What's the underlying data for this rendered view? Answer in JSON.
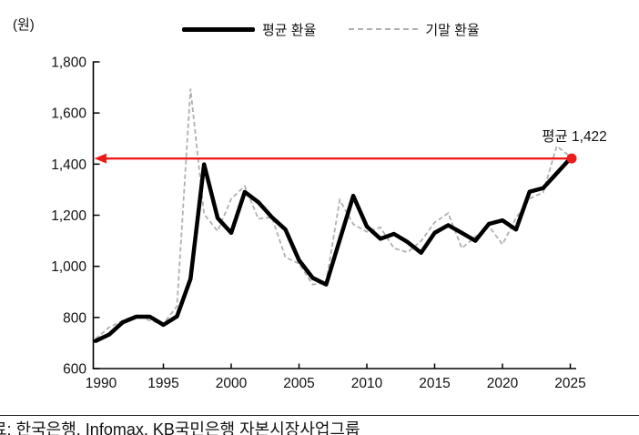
{
  "unit_label": "(원)",
  "legend": {
    "series1": "평균 환율",
    "series2": "기말 환율"
  },
  "annotation": "평균 1,422",
  "footer": {
    "source_text": "료: 한국은행, Infomax, KB국민은행 자본시장사업그룹"
  },
  "colors": {
    "average_line": "#000000",
    "end_of_period_line": "#b0b0b0",
    "highlight_red": "#ee1b1b",
    "text": "#111111"
  },
  "chart_data": {
    "type": "line",
    "title": "",
    "ylabel": "(원)",
    "ylim": [
      600,
      1800
    ],
    "yticks": [
      600,
      800,
      1000,
      1200,
      1400,
      1600,
      1800
    ],
    "ytick_labels": [
      "600",
      "800",
      "1,000",
      "1,200",
      "1,400",
      "1,600",
      "1,800"
    ],
    "xticks": [
      1990,
      1995,
      2000,
      2005,
      2010,
      2015,
      2020,
      2025
    ],
    "grid": false,
    "legend_position": "top",
    "x": [
      1990,
      1991,
      1992,
      1993,
      1994,
      1995,
      1996,
      1997,
      1998,
      1999,
      2000,
      2001,
      2002,
      2003,
      2004,
      2005,
      2006,
      2007,
      2008,
      2009,
      2010,
      2011,
      2012,
      2013,
      2014,
      2015,
      2016,
      2017,
      2018,
      2019,
      2020,
      2021,
      2022,
      2023,
      2024,
      2025
    ],
    "series": [
      {
        "name": "평균 환율",
        "style": "solid",
        "color": "#000000",
        "values": [
          708,
          733,
          781,
          803,
          803,
          771,
          804,
          951,
          1399,
          1189,
          1131,
          1291,
          1251,
          1192,
          1144,
          1024,
          955,
          929,
          1103,
          1276,
          1156,
          1108,
          1127,
          1095,
          1053,
          1131,
          1161,
          1131,
          1100,
          1166,
          1180,
          1144,
          1292,
          1306,
          1364,
          1422
        ]
      },
      {
        "name": "기말 환율",
        "style": "dashed",
        "color": "#b0b0b0",
        "values": [
          716,
          761,
          788,
          808,
          788,
          775,
          844,
          1695,
          1204,
          1138,
          1264,
          1314,
          1186,
          1192,
          1035,
          1011,
          929,
          936,
          1260,
          1165,
          1135,
          1152,
          1071,
          1055,
          1099,
          1172,
          1208,
          1071,
          1116,
          1157,
          1086,
          1189,
          1265,
          1289,
          1470,
          1430
        ]
      }
    ],
    "reference_line": {
      "value": 1422,
      "label": "평균 1,422",
      "color": "#ee1b1b",
      "style": "left-arrow-with-end-dot"
    }
  }
}
